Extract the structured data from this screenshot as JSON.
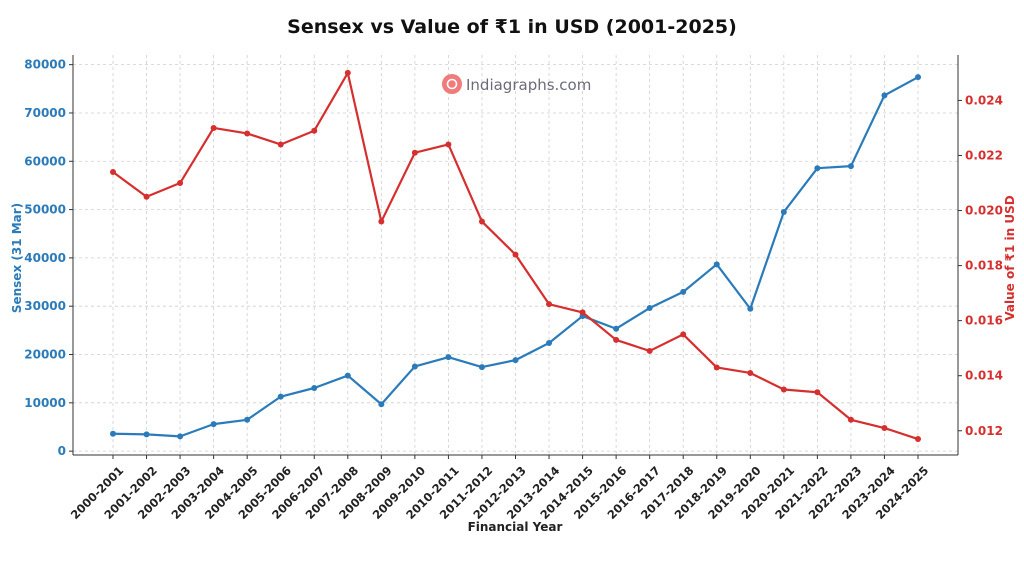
{
  "chart_data": {
    "type": "line",
    "title": "Sensex vs Value of ₹1 in USD (2001-2025)",
    "xlabel": "Financial Year",
    "ylabel_left": "Sensex (31 Mar)",
    "ylabel_right": "Value of ₹1 in USD",
    "categories": [
      "2000-2001",
      "2001-2002",
      "2002-2003",
      "2003-2004",
      "2004-2005",
      "2005-2006",
      "2006-2007",
      "2007-2008",
      "2008-2009",
      "2009-2010",
      "2010-2011",
      "2011-2012",
      "2012-2013",
      "2013-2014",
      "2014-2015",
      "2015-2016",
      "2016-2017",
      "2017-2018",
      "2018-2019",
      "2019-2020",
      "2020-2021",
      "2021-2022",
      "2022-2023",
      "2023-2024",
      "2024-2025"
    ],
    "series": [
      {
        "name": "",
        "axis": "left",
        "color": "#2b7bba",
        "values": [
          3600,
          3470,
          3050,
          5590,
          6490,
          11280,
          13070,
          15640,
          9710,
          17530,
          19450,
          17400,
          18840,
          22390,
          27960,
          25340,
          29620,
          32970,
          38670,
          29470,
          49510,
          58570,
          58990,
          73650,
          77410
        ]
      },
      {
        "name": "",
        "axis": "right",
        "color": "#d62f2f",
        "values": [
          0.0214,
          0.0205,
          0.021,
          0.023,
          0.0228,
          0.0224,
          0.0229,
          0.025,
          0.0196,
          0.0221,
          0.0224,
          0.0196,
          0.0184,
          0.0166,
          0.0163,
          0.0153,
          0.0149,
          0.0155,
          0.0143,
          0.0141,
          0.0135,
          0.0134,
          0.0124,
          0.0121,
          0.0117
        ]
      }
    ],
    "y_left_ticks": [
      "0",
      "10000",
      "20000",
      "30000",
      "40000",
      "50000",
      "60000",
      "70000",
      "80000"
    ],
    "y_left_tick_values": [
      0,
      10000,
      20000,
      30000,
      40000,
      50000,
      60000,
      70000,
      80000
    ],
    "ylim_left": [
      -800,
      82000
    ],
    "y_right_ticks": [
      "0.012",
      "0.014",
      "0.016",
      "0.018",
      "0.020",
      "0.022",
      "0.024"
    ],
    "y_right_tick_values": [
      0.012,
      0.014,
      0.016,
      0.018,
      0.02,
      0.022,
      0.024
    ],
    "ylim_right": [
      0.01112,
      0.02565
    ],
    "grid": true,
    "legend": "none"
  },
  "watermark": {
    "text": "Indiagraphs.com",
    "icon": "indiagraphs-logo-icon"
  },
  "colors": {
    "left_axis": "#2b7bba",
    "right_axis": "#d62f2f",
    "grid": "#cfcfcf",
    "watermark_logo": "#f07b7b"
  }
}
